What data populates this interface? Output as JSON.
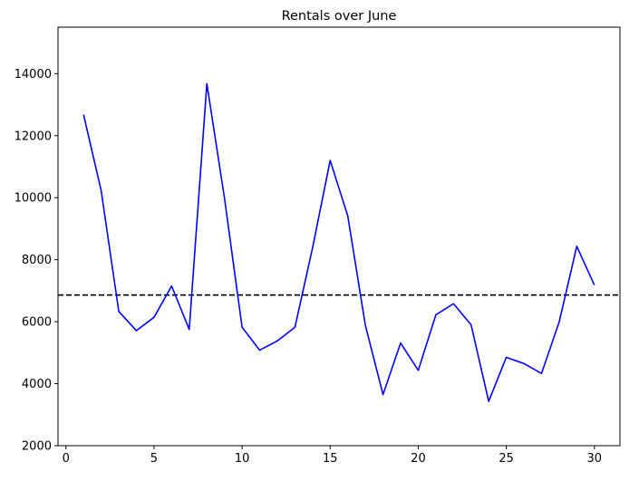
{
  "chart_data": {
    "type": "line",
    "title": "Rentals over June",
    "xlabel": "",
    "ylabel": "",
    "xlim": [
      -0.45,
      31.45
    ],
    "ylim": [
      2000,
      15500
    ],
    "xticks": [
      0,
      5,
      10,
      15,
      20,
      25,
      30
    ],
    "xtick_labels": [
      "0",
      "5",
      "10",
      "15",
      "20",
      "25",
      "30"
    ],
    "yticks": [
      2000,
      4000,
      6000,
      8000,
      10000,
      12000,
      14000
    ],
    "ytick_labels": [
      "2000",
      "4000",
      "6000",
      "8000",
      "10000",
      "12000",
      "14000"
    ],
    "grid": false,
    "legend": "none",
    "x": [
      1,
      2,
      3,
      4,
      5,
      6,
      7,
      8,
      9,
      10,
      11,
      12,
      13,
      14,
      15,
      16,
      17,
      18,
      19,
      20,
      21,
      22,
      23,
      24,
      25,
      26,
      27,
      28,
      29,
      30
    ],
    "series": [
      {
        "color": "#0000ff",
        "style": "solid",
        "values": [
          12680,
          10230,
          6330,
          5710,
          6140,
          7150,
          5750,
          13680,
          9990,
          5820,
          5080,
          5380,
          5820,
          8380,
          11200,
          9410,
          5880,
          3650,
          5310,
          4430,
          6220,
          6580,
          5900,
          3430,
          4850,
          4650,
          4330,
          5990,
          8430,
          7180
        ]
      }
    ],
    "reference_lines": [
      {
        "axis": "y",
        "value": 6860,
        "color": "#000000",
        "style": "dashed"
      }
    ]
  }
}
